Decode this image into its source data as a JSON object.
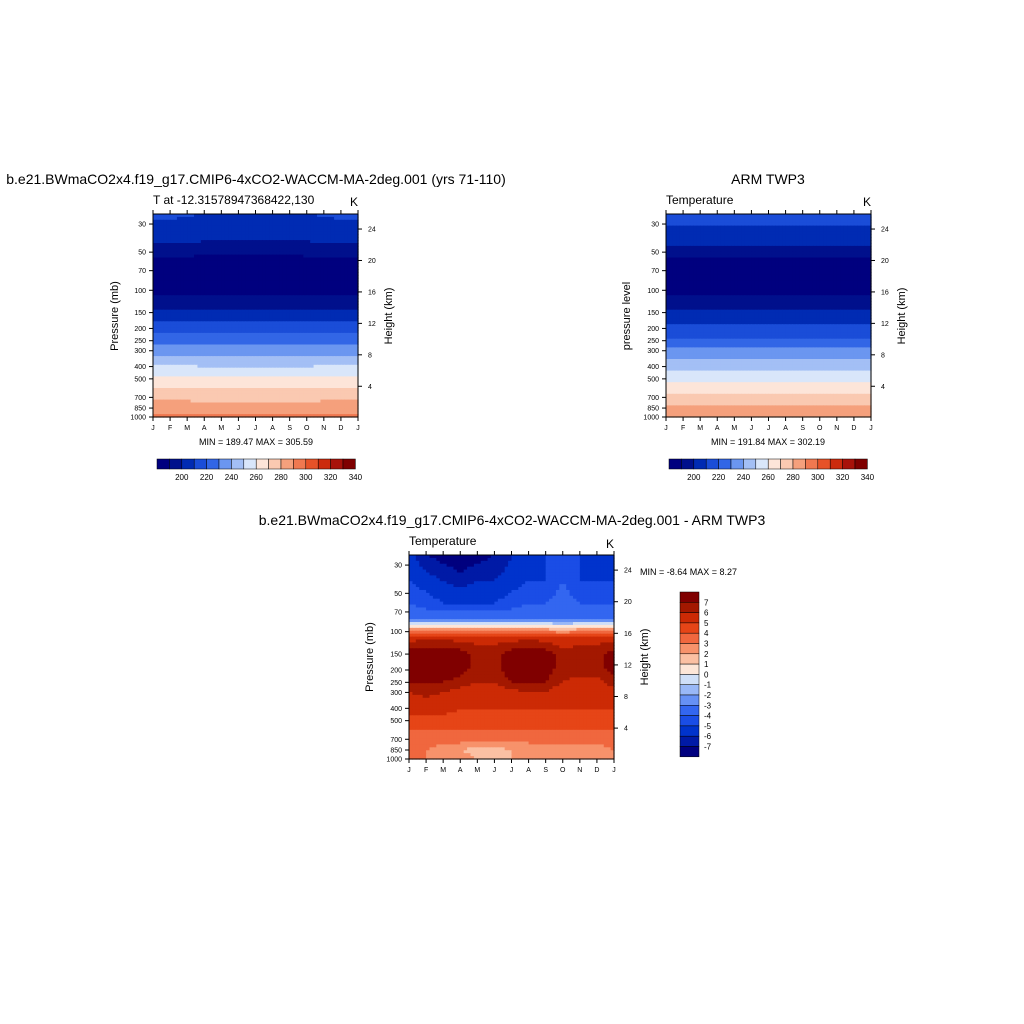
{
  "panels": [
    {
      "title": "b.e21.BWmaCO2x4.f19_g17.CMIP6-4xCO2-WACCM-MA-2deg.001 (yrs 71-110)",
      "left_string": "T at -12.31578947368422,130",
      "right_string": "K",
      "ylabel": "Pressure (mb)",
      "ylabel_right": "Height (km)",
      "minmax": "MIN = 189.47 MAX = 305.59"
    },
    {
      "title": "ARM TWP3",
      "left_string": "Temperature",
      "right_string": "K",
      "ylabel": "pressure level",
      "ylabel_right": "Height (km)",
      "minmax": "MIN = 191.84 MAX = 302.19"
    },
    {
      "title": "b.e21.BWmaCO2x4.f19_g17.CMIP6-4xCO2-WACCM-MA-2deg.001 - ARM TWP3",
      "left_string": "Temperature",
      "right_string": "K",
      "ylabel": "Pressure (mb)",
      "ylabel_right": "Height (km)",
      "minmax": "MIN =  -8.64 MAX =   8.27"
    }
  ],
  "chart_data": [
    {
      "type": "heatmap",
      "title": "b.e21.BWmaCO2x4.f19_g17.CMIP6-4xCO2-WACCM-MA-2deg.001 (yrs 71-110)",
      "subtitle_left": "T at -12.31578947368422,130",
      "units": "K",
      "x": [
        "J",
        "F",
        "M",
        "A",
        "M",
        "J",
        "J",
        "A",
        "S",
        "O",
        "N",
        "D",
        "J"
      ],
      "y_ticks": [
        30,
        50,
        70,
        100,
        150,
        200,
        250,
        300,
        400,
        500,
        700,
        850,
        1000
      ],
      "y_scale": "log",
      "ylim": [
        1000,
        25
      ],
      "ylabel": "Pressure (mb)",
      "y2_ticks": [
        4,
        8,
        12,
        16,
        20,
        24
      ],
      "y2label": "Height (km)",
      "values": [
        {
          "p": 25,
          "t": [
            222,
            222,
            221,
            220,
            220,
            219,
            219,
            219,
            219,
            220,
            221,
            222,
            222
          ]
        },
        {
          "p": 40,
          "t": [
            213,
            213,
            212,
            211,
            211,
            210,
            210,
            210,
            211,
            211,
            212,
            213,
            213
          ]
        },
        {
          "p": 60,
          "t": [
            196,
            196,
            196,
            195,
            195,
            195,
            195,
            195,
            195,
            196,
            196,
            196,
            196
          ]
        },
        {
          "p": 90,
          "t": [
            192,
            192,
            192,
            192,
            192,
            192,
            192,
            192,
            192,
            192,
            192,
            192,
            192
          ]
        },
        {
          "p": 110,
          "t": [
            200,
            200,
            200,
            200,
            200,
            200,
            200,
            200,
            200,
            200,
            200,
            200,
            200
          ]
        },
        {
          "p": 150,
          "t": [
            213,
            213,
            213,
            212,
            212,
            212,
            212,
            212,
            212,
            212,
            213,
            213,
            213
          ]
        },
        {
          "p": 200,
          "t": [
            226,
            226,
            226,
            225,
            225,
            225,
            225,
            225,
            225,
            226,
            226,
            226,
            226
          ]
        },
        {
          "p": 250,
          "t": [
            237,
            237,
            237,
            236,
            236,
            236,
            236,
            236,
            236,
            236,
            237,
            237,
            237
          ]
        },
        {
          "p": 300,
          "t": [
            246,
            246,
            246,
            245,
            245,
            245,
            245,
            245,
            245,
            245,
            246,
            246,
            246
          ]
        },
        {
          "p": 400,
          "t": [
            261,
            261,
            261,
            260,
            260,
            260,
            260,
            260,
            260,
            260,
            261,
            261,
            261
          ]
        },
        {
          "p": 500,
          "t": [
            273,
            273,
            273,
            272,
            272,
            272,
            272,
            272,
            272,
            272,
            273,
            273,
            273
          ]
        },
        {
          "p": 700,
          "t": [
            287,
            287,
            287,
            286,
            286,
            286,
            286,
            286,
            286,
            286,
            287,
            287,
            287
          ]
        },
        {
          "p": 850,
          "t": [
            296,
            296,
            296,
            296,
            296,
            295,
            295,
            295,
            296,
            296,
            296,
            296,
            296
          ]
        },
        {
          "p": 1000,
          "t": [
            303,
            303,
            303,
            303,
            302,
            301,
            301,
            301,
            302,
            303,
            303,
            303,
            303
          ]
        }
      ],
      "min_max": "MIN = 189.47 MAX = 305.59",
      "colorbar_labels": [
        "200",
        "220",
        "240",
        "260",
        "280",
        "300",
        "320",
        "340"
      ]
    },
    {
      "type": "heatmap",
      "title": "ARM TWP3",
      "subtitle_left": "Temperature",
      "units": "K",
      "x": [
        "J",
        "F",
        "M",
        "A",
        "M",
        "J",
        "J",
        "A",
        "S",
        "O",
        "N",
        "D",
        "J"
      ],
      "y_ticks": [
        30,
        50,
        70,
        100,
        150,
        200,
        250,
        300,
        400,
        500,
        700,
        850,
        1000
      ],
      "y_scale": "log",
      "ylim": [
        1000,
        25
      ],
      "ylabel": "pressure level",
      "y2_ticks": [
        4,
        8,
        12,
        16,
        20,
        24
      ],
      "y2label": "Height (km)",
      "values": [
        {
          "p": 25,
          "t": [
            225,
            225,
            225,
            225,
            225,
            225,
            225,
            225,
            225,
            225,
            225,
            225,
            225
          ]
        },
        {
          "p": 40,
          "t": [
            215,
            215,
            215,
            214,
            214,
            214,
            214,
            214,
            214,
            215,
            215,
            215,
            215
          ]
        },
        {
          "p": 60,
          "t": [
            197,
            197,
            197,
            197,
            197,
            197,
            197,
            197,
            197,
            197,
            197,
            197,
            197
          ]
        },
        {
          "p": 90,
          "t": [
            194,
            194,
            194,
            194,
            194,
            194,
            194,
            194,
            194,
            194,
            194,
            194,
            194
          ]
        },
        {
          "p": 110,
          "t": [
            200,
            200,
            200,
            200,
            200,
            200,
            200,
            200,
            200,
            200,
            200,
            200,
            200
          ]
        },
        {
          "p": 150,
          "t": [
            211,
            211,
            211,
            211,
            211,
            211,
            211,
            211,
            211,
            211,
            211,
            211,
            211
          ]
        },
        {
          "p": 200,
          "t": [
            222,
            222,
            222,
            222,
            222,
            222,
            222,
            222,
            222,
            222,
            222,
            222,
            222
          ]
        },
        {
          "p": 250,
          "t": [
            233,
            233,
            233,
            233,
            233,
            233,
            233,
            233,
            233,
            233,
            233,
            233,
            233
          ]
        },
        {
          "p": 300,
          "t": [
            242,
            242,
            242,
            242,
            242,
            242,
            242,
            242,
            242,
            242,
            242,
            242,
            242
          ]
        },
        {
          "p": 400,
          "t": [
            257,
            257,
            257,
            257,
            257,
            257,
            257,
            257,
            257,
            257,
            257,
            257,
            257
          ]
        },
        {
          "p": 500,
          "t": [
            268,
            268,
            268,
            268,
            268,
            268,
            268,
            268,
            268,
            268,
            268,
            268,
            268
          ]
        },
        {
          "p": 700,
          "t": [
            283,
            283,
            283,
            283,
            283,
            283,
            283,
            283,
            283,
            283,
            283,
            283,
            283
          ]
        },
        {
          "p": 850,
          "t": [
            292,
            292,
            292,
            292,
            292,
            292,
            292,
            292,
            292,
            292,
            292,
            292,
            292
          ]
        },
        {
          "p": 1000,
          "t": [
            300,
            300,
            300,
            300,
            300,
            300,
            300,
            300,
            300,
            300,
            300,
            300,
            300
          ]
        }
      ],
      "min_max": "MIN = 191.84 MAX = 302.19",
      "colorbar_labels": [
        "200",
        "220",
        "240",
        "260",
        "280",
        "300",
        "320",
        "340"
      ]
    },
    {
      "type": "heatmap",
      "title": "b.e21.BWmaCO2x4.f19_g17.CMIP6-4xCO2-WACCM-MA-2deg.001 - ARM TWP3",
      "subtitle_left": "Temperature",
      "units": "K",
      "x": [
        "J",
        "F",
        "M",
        "A",
        "M",
        "J",
        "J",
        "A",
        "S",
        "O",
        "N",
        "D",
        "J"
      ],
      "y_ticks": [
        30,
        50,
        70,
        100,
        150,
        200,
        250,
        300,
        400,
        500,
        700,
        850,
        1000
      ],
      "y_scale": "log",
      "ylim": [
        1000,
        25
      ],
      "ylabel": "Pressure (mb)",
      "y2_ticks": [
        4,
        8,
        12,
        16,
        20,
        24
      ],
      "y2label": "Height (km)",
      "values": [
        {
          "p": 25,
          "t": [
            -5.5,
            -7,
            -7.5,
            -8,
            -7.5,
            -7,
            -6,
            -5.5,
            -5,
            -4.5,
            -5,
            -5.5,
            -5.5
          ]
        },
        {
          "p": 40,
          "t": [
            -5,
            -5.5,
            -6,
            -6.5,
            -6,
            -6,
            -5.5,
            -5,
            -5,
            -4,
            -5,
            -5,
            -5
          ]
        },
        {
          "p": 60,
          "t": [
            -4,
            -4.5,
            -5,
            -5,
            -5,
            -5,
            -4.5,
            -4,
            -4,
            -3.5,
            -4,
            -4,
            -4
          ]
        },
        {
          "p": 80,
          "t": [
            -3,
            -3,
            -3,
            -3,
            -3,
            -3,
            -3,
            -3,
            -3,
            -3,
            -3,
            -3,
            -3
          ]
        },
        {
          "p": 95,
          "t": [
            2,
            2,
            2,
            2,
            2,
            2,
            2,
            2,
            2,
            1,
            2,
            2,
            2
          ]
        },
        {
          "p": 110,
          "t": [
            5.5,
            5.5,
            5.5,
            5.5,
            5.5,
            5.5,
            5.5,
            5.5,
            5.5,
            5,
            5.5,
            5.5,
            5.5
          ]
        },
        {
          "p": 150,
          "t": [
            7.5,
            7.8,
            7.8,
            7.5,
            6.5,
            6.5,
            7.5,
            7.8,
            7.5,
            6.5,
            6.5,
            6.5,
            7.5
          ]
        },
        {
          "p": 200,
          "t": [
            7.5,
            7.8,
            7.8,
            7.5,
            6.5,
            6.5,
            7.8,
            7.8,
            7.5,
            6.5,
            6.5,
            6.5,
            7.5
          ]
        },
        {
          "p": 250,
          "t": [
            7,
            7.2,
            7,
            6.5,
            6,
            6,
            7,
            7.2,
            7,
            6,
            5.5,
            5.5,
            6.5
          ]
        },
        {
          "p": 300,
          "t": [
            6,
            6.2,
            6,
            5.5,
            5.5,
            5.5,
            5.5,
            6,
            6,
            5,
            5,
            5,
            5.5
          ]
        },
        {
          "p": 400,
          "t": [
            5.5,
            5.5,
            5.5,
            5,
            5,
            5,
            5,
            5,
            5,
            5,
            5,
            5,
            5
          ]
        },
        {
          "p": 500,
          "t": [
            4.5,
            4.5,
            4.5,
            4.5,
            4.5,
            4.5,
            4.5,
            4.5,
            4.5,
            4.5,
            4.5,
            4.5,
            4.5
          ]
        },
        {
          "p": 700,
          "t": [
            3.5,
            3.5,
            3.5,
            3.5,
            3.5,
            3.5,
            3.5,
            3.5,
            3.5,
            3.5,
            3.5,
            3.5,
            3.5
          ]
        },
        {
          "p": 850,
          "t": [
            3,
            3,
            2.5,
            2,
            1.5,
            1.5,
            2,
            2,
            2.5,
            2.5,
            2.5,
            2.5,
            3
          ]
        },
        {
          "p": 1000,
          "t": [
            3,
            3,
            2.5,
            2.5,
            2,
            2,
            2,
            2,
            2.5,
            2.5,
            2.5,
            2.5,
            3
          ]
        }
      ],
      "min_max": "MIN =  -8.64 MAX =   8.27",
      "colorbar_labels": [
        "7",
        "6",
        "5",
        "4",
        "3",
        "2",
        "1",
        "0",
        "-1",
        "-2",
        "-3",
        "-4",
        "-5",
        "-6",
        "-7"
      ]
    }
  ],
  "colors": {
    "abs_scale": [
      "#00007f",
      "#00108c",
      "#002bb3",
      "#1a4dd8",
      "#3266e6",
      "#6b96f0",
      "#a3bff5",
      "#d9e6fa",
      "#fde5d9",
      "#fac9b1",
      "#f5a07c",
      "#f07850",
      "#e65228",
      "#cc2b0d",
      "#a8120a",
      "#7f0000"
    ],
    "diff_scale": [
      "#00007f",
      "#001aa6",
      "#0033cc",
      "#1a4de6",
      "#3366f0",
      "#6691f5",
      "#99b8f7",
      "#cfdff8",
      "#fde6d8",
      "#fbc0a3",
      "#f7926b",
      "#f0673e",
      "#e64517",
      "#cc2a05",
      "#a31800",
      "#800000"
    ]
  }
}
